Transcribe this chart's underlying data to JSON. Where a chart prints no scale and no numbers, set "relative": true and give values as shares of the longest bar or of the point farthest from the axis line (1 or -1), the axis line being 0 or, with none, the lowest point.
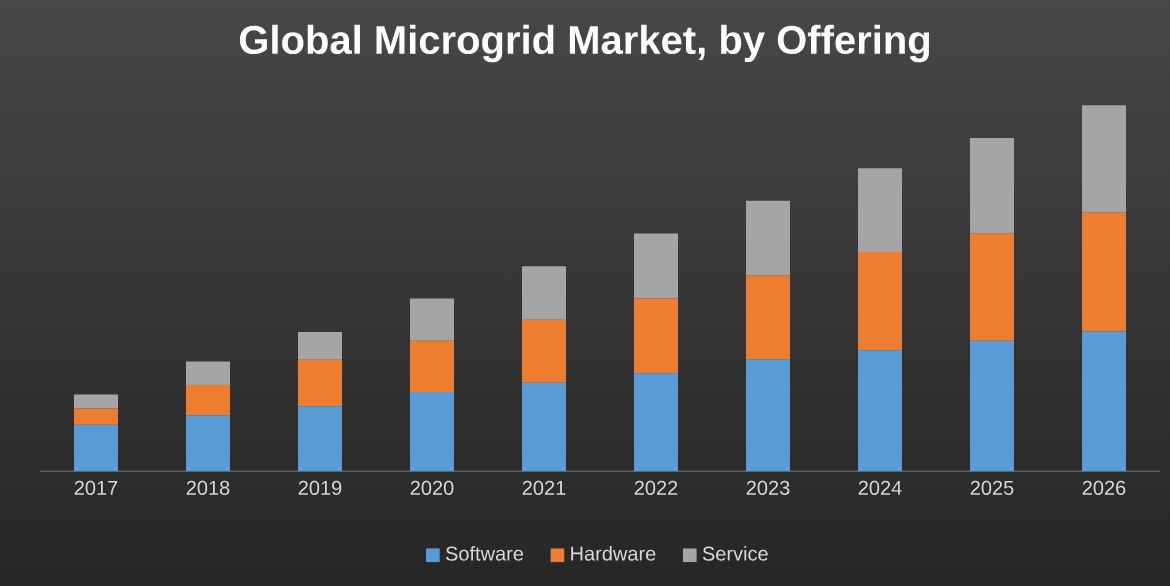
{
  "chart_data": {
    "type": "bar",
    "title": "Global Microgrid Market, by Offering",
    "categories": [
      "2017",
      "2018",
      "2019",
      "2020",
      "2021",
      "2022",
      "2023",
      "2024",
      "2025",
      "2026"
    ],
    "stacked": true,
    "relative": true,
    "legend": "bottom",
    "series": [
      {
        "name": "Software",
        "color": "#5b9bd5",
        "values": [
          0.127,
          0.153,
          0.178,
          0.217,
          0.242,
          0.268,
          0.306,
          0.331,
          0.357,
          0.382
        ]
      },
      {
        "name": "Hardware",
        "color": "#ed7d31",
        "values": [
          0.045,
          0.083,
          0.127,
          0.14,
          0.172,
          0.204,
          0.229,
          0.268,
          0.293,
          0.325
        ]
      },
      {
        "name": "Service",
        "color": "#a5a5a5",
        "values": [
          0.038,
          0.064,
          0.076,
          0.115,
          0.146,
          0.178,
          0.204,
          0.229,
          0.261,
          0.293
        ]
      }
    ]
  }
}
